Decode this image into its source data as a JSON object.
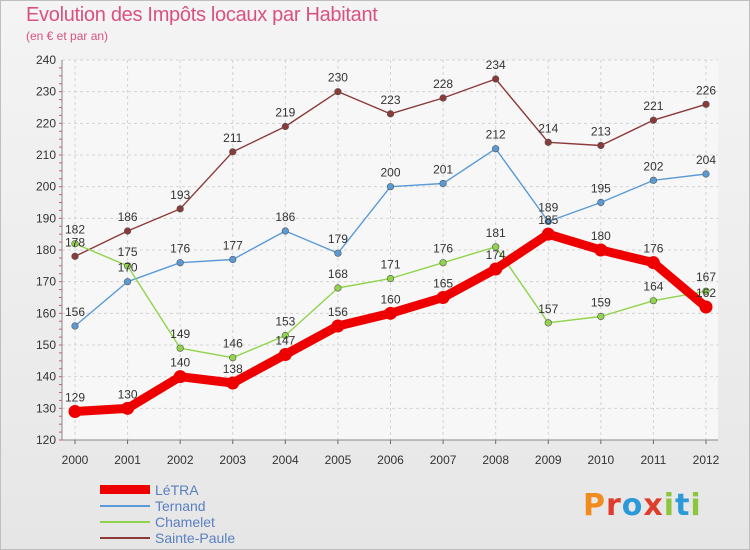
{
  "header": {
    "title": "Evolution des Impôts locaux par Habitant",
    "subtitle": "(en € et par an)"
  },
  "logo": {
    "text": "Proxiti",
    "colors": [
      "#f08c1e",
      "#e03c2c",
      "#2c9ad8",
      "#e03c2c",
      "#8cc63f",
      "#2c9ad8",
      "#8cc63f"
    ]
  },
  "chart_data": {
    "type": "line",
    "title": "Evolution des Impôts locaux par Habitant",
    "subtitle": "(en € et par an)",
    "x": [
      "2000",
      "2001",
      "2002",
      "2003",
      "2004",
      "2005",
      "2006",
      "2007",
      "2008",
      "2009",
      "2010",
      "2011",
      "2012"
    ],
    "ylim": [
      120,
      240
    ],
    "yticks": [
      120,
      130,
      140,
      150,
      160,
      170,
      180,
      190,
      200,
      210,
      220,
      230,
      240
    ],
    "grid": true,
    "legend_position": "bottom-left",
    "series": [
      {
        "name": "LéTRA",
        "color": "#ee0000",
        "values": [
          129,
          130,
          140,
          138,
          147,
          156,
          160,
          165,
          174,
          185,
          180,
          176,
          162
        ]
      },
      {
        "name": "Ternand",
        "color": "#5b9bd5",
        "values": [
          156,
          170,
          176,
          177,
          186,
          179,
          200,
          201,
          212,
          189,
          195,
          202,
          204
        ]
      },
      {
        "name": "Chamelet",
        "color": "#8fd44a",
        "values": [
          182,
          175,
          149,
          146,
          153,
          168,
          171,
          176,
          181,
          157,
          159,
          164,
          167
        ]
      },
      {
        "name": "Sainte-Paule",
        "color": "#8b3a3a",
        "values": [
          178,
          186,
          193,
          211,
          219,
          230,
          223,
          228,
          234,
          214,
          213,
          221,
          226
        ]
      }
    ]
  }
}
